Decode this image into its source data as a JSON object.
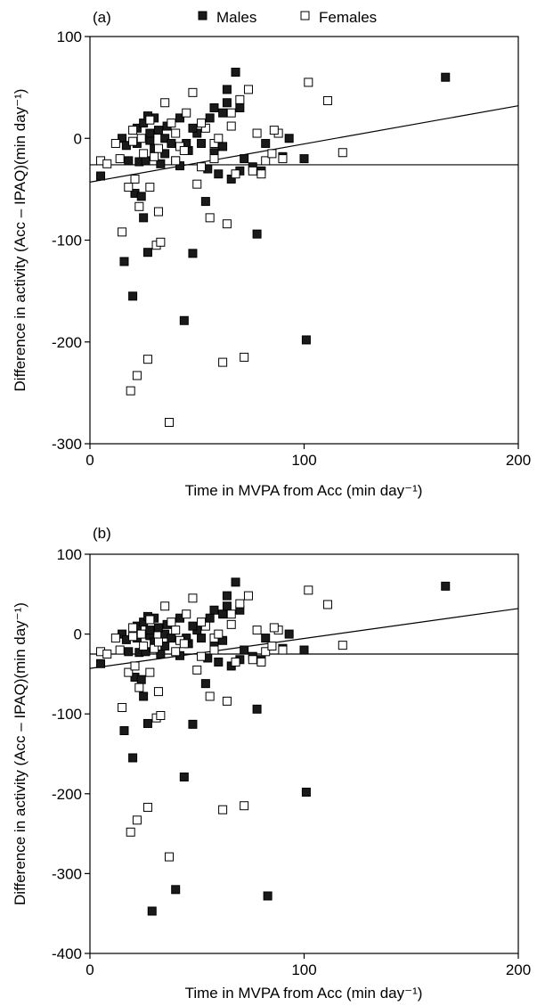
{
  "legend": {
    "males_label": "Males",
    "females_label": "Females"
  },
  "chart_data": [
    {
      "type": "scatter",
      "panel_label": "(a)",
      "title": "",
      "xlabel": "Time in MVPA from Acc (min day⁻¹)",
      "ylabel": "Difference in activity (Acc – IPAQ)(min day⁻¹)",
      "xlim": [
        0,
        200
      ],
      "ylim": [
        -300,
        100
      ],
      "xticks": [
        0,
        100,
        200
      ],
      "yticks": [
        -300,
        -200,
        -100,
        0,
        100
      ],
      "grid": false,
      "legend_position": "top",
      "lines": [
        {
          "kind": "mean-difference",
          "x": [
            0,
            200
          ],
          "y": [
            -26,
            -26
          ]
        },
        {
          "kind": "regression",
          "x": [
            0,
            200
          ],
          "y": [
            -43,
            32
          ]
        }
      ],
      "series": [
        {
          "name": "Males",
          "marker": "filled-square",
          "points": [
            [
              5,
              -37
            ],
            [
              15,
              0
            ],
            [
              16,
              -121
            ],
            [
              17,
              -7
            ],
            [
              18,
              -22
            ],
            [
              20,
              -155
            ],
            [
              21,
              -54
            ],
            [
              22,
              -5
            ],
            [
              23,
              -23
            ],
            [
              24,
              -57
            ],
            [
              25,
              -78
            ],
            [
              26,
              -22
            ],
            [
              27,
              -112
            ],
            [
              28,
              -2
            ],
            [
              30,
              -10
            ],
            [
              33,
              -25
            ],
            [
              35,
              0
            ],
            [
              38,
              -5
            ],
            [
              40,
              -22
            ],
            [
              42,
              -27
            ],
            [
              44,
              -179
            ],
            [
              46,
              -12
            ],
            [
              48,
              -113
            ],
            [
              52,
              -5
            ],
            [
              54,
              -62
            ],
            [
              55,
              -30
            ],
            [
              58,
              -14
            ],
            [
              60,
              -35
            ],
            [
              62,
              -8
            ],
            [
              64,
              48
            ],
            [
              66,
              -40
            ],
            [
              68,
              65
            ],
            [
              70,
              -32
            ],
            [
              72,
              -20
            ],
            [
              76,
              -28
            ],
            [
              78,
              -94
            ],
            [
              80,
              -32
            ],
            [
              82,
              -5
            ],
            [
              90,
              -18
            ],
            [
              93,
              0
            ],
            [
              100,
              -20
            ],
            [
              101,
              -198
            ],
            [
              166,
              60
            ],
            [
              22,
              10
            ],
            [
              25,
              15
            ],
            [
              28,
              5
            ],
            [
              32,
              8
            ],
            [
              36,
              12
            ],
            [
              42,
              20
            ],
            [
              50,
              5
            ],
            [
              56,
              20
            ],
            [
              58,
              30
            ],
            [
              62,
              25
            ],
            [
              64,
              35
            ],
            [
              70,
              30
            ],
            [
              45,
              -5
            ],
            [
              35,
              -15
            ],
            [
              30,
              20
            ],
            [
              27,
              22
            ],
            [
              48,
              10
            ]
          ]
        },
        {
          "name": "Females",
          "marker": "open-square",
          "points": [
            [
              5,
              -22
            ],
            [
              8,
              -25
            ],
            [
              12,
              -5
            ],
            [
              14,
              -20
            ],
            [
              15,
              -92
            ],
            [
              18,
              -48
            ],
            [
              19,
              -248
            ],
            [
              20,
              -3
            ],
            [
              21,
              -40
            ],
            [
              22,
              -233
            ],
            [
              23,
              -67
            ],
            [
              25,
              -15
            ],
            [
              27,
              -217
            ],
            [
              28,
              -48
            ],
            [
              30,
              -18
            ],
            [
              31,
              -105
            ],
            [
              32,
              -72
            ],
            [
              33,
              -102
            ],
            [
              35,
              35
            ],
            [
              37,
              -279
            ],
            [
              38,
              15
            ],
            [
              40,
              -22
            ],
            [
              42,
              -8
            ],
            [
              45,
              25
            ],
            [
              48,
              45
            ],
            [
              50,
              -45
            ],
            [
              52,
              -28
            ],
            [
              54,
              10
            ],
            [
              56,
              -78
            ],
            [
              58,
              -5
            ],
            [
              60,
              0
            ],
            [
              62,
              -220
            ],
            [
              64,
              -84
            ],
            [
              66,
              25
            ],
            [
              68,
              -35
            ],
            [
              70,
              38
            ],
            [
              72,
              -215
            ],
            [
              74,
              48
            ],
            [
              76,
              -32
            ],
            [
              78,
              5
            ],
            [
              80,
              -35
            ],
            [
              82,
              -22
            ],
            [
              85,
              -15
            ],
            [
              88,
              5
            ],
            [
              90,
              -20
            ],
            [
              102,
              55
            ],
            [
              111,
              37
            ],
            [
              118,
              -14
            ],
            [
              20,
              8
            ],
            [
              24,
              0
            ],
            [
              28,
              18
            ],
            [
              32,
              -10
            ],
            [
              40,
              5
            ],
            [
              44,
              -12
            ],
            [
              52,
              15
            ],
            [
              58,
              -20
            ],
            [
              66,
              12
            ],
            [
              86,
              8
            ]
          ]
        }
      ]
    },
    {
      "type": "scatter",
      "panel_label": "(b)",
      "title": "",
      "xlabel": "Time in MVPA from Acc (min day⁻¹)",
      "ylabel": "Difference in activity (Acc – IPAQ)(min day⁻¹)",
      "xlim": [
        0,
        200
      ],
      "ylim": [
        -400,
        100
      ],
      "xticks": [
        0,
        100,
        200
      ],
      "yticks": [
        -400,
        -300,
        -200,
        -100,
        0,
        100
      ],
      "grid": false,
      "legend_position": "none",
      "lines": [
        {
          "kind": "mean-difference",
          "x": [
            0,
            200
          ],
          "y": [
            -25,
            -25
          ]
        },
        {
          "kind": "regression",
          "x": [
            0,
            200
          ],
          "y": [
            -43,
            32
          ]
        }
      ],
      "series": [
        {
          "name": "Males",
          "marker": "filled-square",
          "points": [
            [
              5,
              -37
            ],
            [
              15,
              0
            ],
            [
              16,
              -121
            ],
            [
              17,
              -7
            ],
            [
              18,
              -22
            ],
            [
              20,
              -155
            ],
            [
              21,
              -54
            ],
            [
              22,
              -5
            ],
            [
              23,
              -23
            ],
            [
              24,
              -57
            ],
            [
              25,
              -78
            ],
            [
              26,
              -22
            ],
            [
              27,
              -112
            ],
            [
              28,
              -2
            ],
            [
              29,
              -347
            ],
            [
              30,
              -10
            ],
            [
              33,
              -25
            ],
            [
              35,
              0
            ],
            [
              38,
              -5
            ],
            [
              40,
              -320
            ],
            [
              42,
              -27
            ],
            [
              44,
              -179
            ],
            [
              46,
              -12
            ],
            [
              48,
              -113
            ],
            [
              52,
              -5
            ],
            [
              54,
              -62
            ],
            [
              55,
              -30
            ],
            [
              58,
              -14
            ],
            [
              60,
              -35
            ],
            [
              62,
              -8
            ],
            [
              64,
              48
            ],
            [
              66,
              -40
            ],
            [
              68,
              65
            ],
            [
              70,
              -32
            ],
            [
              72,
              -20
            ],
            [
              76,
              -28
            ],
            [
              78,
              -94
            ],
            [
              80,
              -32
            ],
            [
              82,
              -5
            ],
            [
              83,
              -328
            ],
            [
              90,
              -18
            ],
            [
              93,
              0
            ],
            [
              100,
              -20
            ],
            [
              101,
              -198
            ],
            [
              166,
              60
            ],
            [
              22,
              10
            ],
            [
              25,
              15
            ],
            [
              28,
              5
            ],
            [
              32,
              8
            ],
            [
              36,
              12
            ],
            [
              42,
              20
            ],
            [
              50,
              5
            ],
            [
              56,
              20
            ],
            [
              58,
              30
            ],
            [
              62,
              25
            ],
            [
              64,
              35
            ],
            [
              70,
              30
            ],
            [
              45,
              -5
            ],
            [
              35,
              -15
            ],
            [
              30,
              20
            ],
            [
              27,
              22
            ],
            [
              48,
              10
            ]
          ]
        },
        {
          "name": "Females",
          "marker": "open-square",
          "points": [
            [
              5,
              -22
            ],
            [
              8,
              -25
            ],
            [
              12,
              -5
            ],
            [
              14,
              -20
            ],
            [
              15,
              -92
            ],
            [
              18,
              -48
            ],
            [
              19,
              -248
            ],
            [
              20,
              -3
            ],
            [
              21,
              -40
            ],
            [
              22,
              -233
            ],
            [
              23,
              -67
            ],
            [
              25,
              -15
            ],
            [
              27,
              -217
            ],
            [
              28,
              -48
            ],
            [
              30,
              -18
            ],
            [
              31,
              -105
            ],
            [
              32,
              -72
            ],
            [
              33,
              -102
            ],
            [
              35,
              35
            ],
            [
              37,
              -279
            ],
            [
              38,
              15
            ],
            [
              40,
              -22
            ],
            [
              42,
              -8
            ],
            [
              45,
              25
            ],
            [
              48,
              45
            ],
            [
              50,
              -45
            ],
            [
              52,
              -28
            ],
            [
              54,
              10
            ],
            [
              56,
              -78
            ],
            [
              58,
              -5
            ],
            [
              60,
              0
            ],
            [
              62,
              -220
            ],
            [
              64,
              -84
            ],
            [
              66,
              25
            ],
            [
              68,
              -35
            ],
            [
              70,
              38
            ],
            [
              72,
              -215
            ],
            [
              74,
              48
            ],
            [
              76,
              -32
            ],
            [
              78,
              5
            ],
            [
              80,
              -35
            ],
            [
              82,
              -22
            ],
            [
              85,
              -15
            ],
            [
              88,
              5
            ],
            [
              90,
              -20
            ],
            [
              102,
              55
            ],
            [
              111,
              37
            ],
            [
              118,
              -14
            ],
            [
              20,
              8
            ],
            [
              24,
              0
            ],
            [
              28,
              18
            ],
            [
              32,
              -10
            ],
            [
              40,
              5
            ],
            [
              44,
              -12
            ],
            [
              52,
              15
            ],
            [
              58,
              -20
            ],
            [
              66,
              12
            ],
            [
              86,
              8
            ]
          ]
        }
      ]
    }
  ]
}
